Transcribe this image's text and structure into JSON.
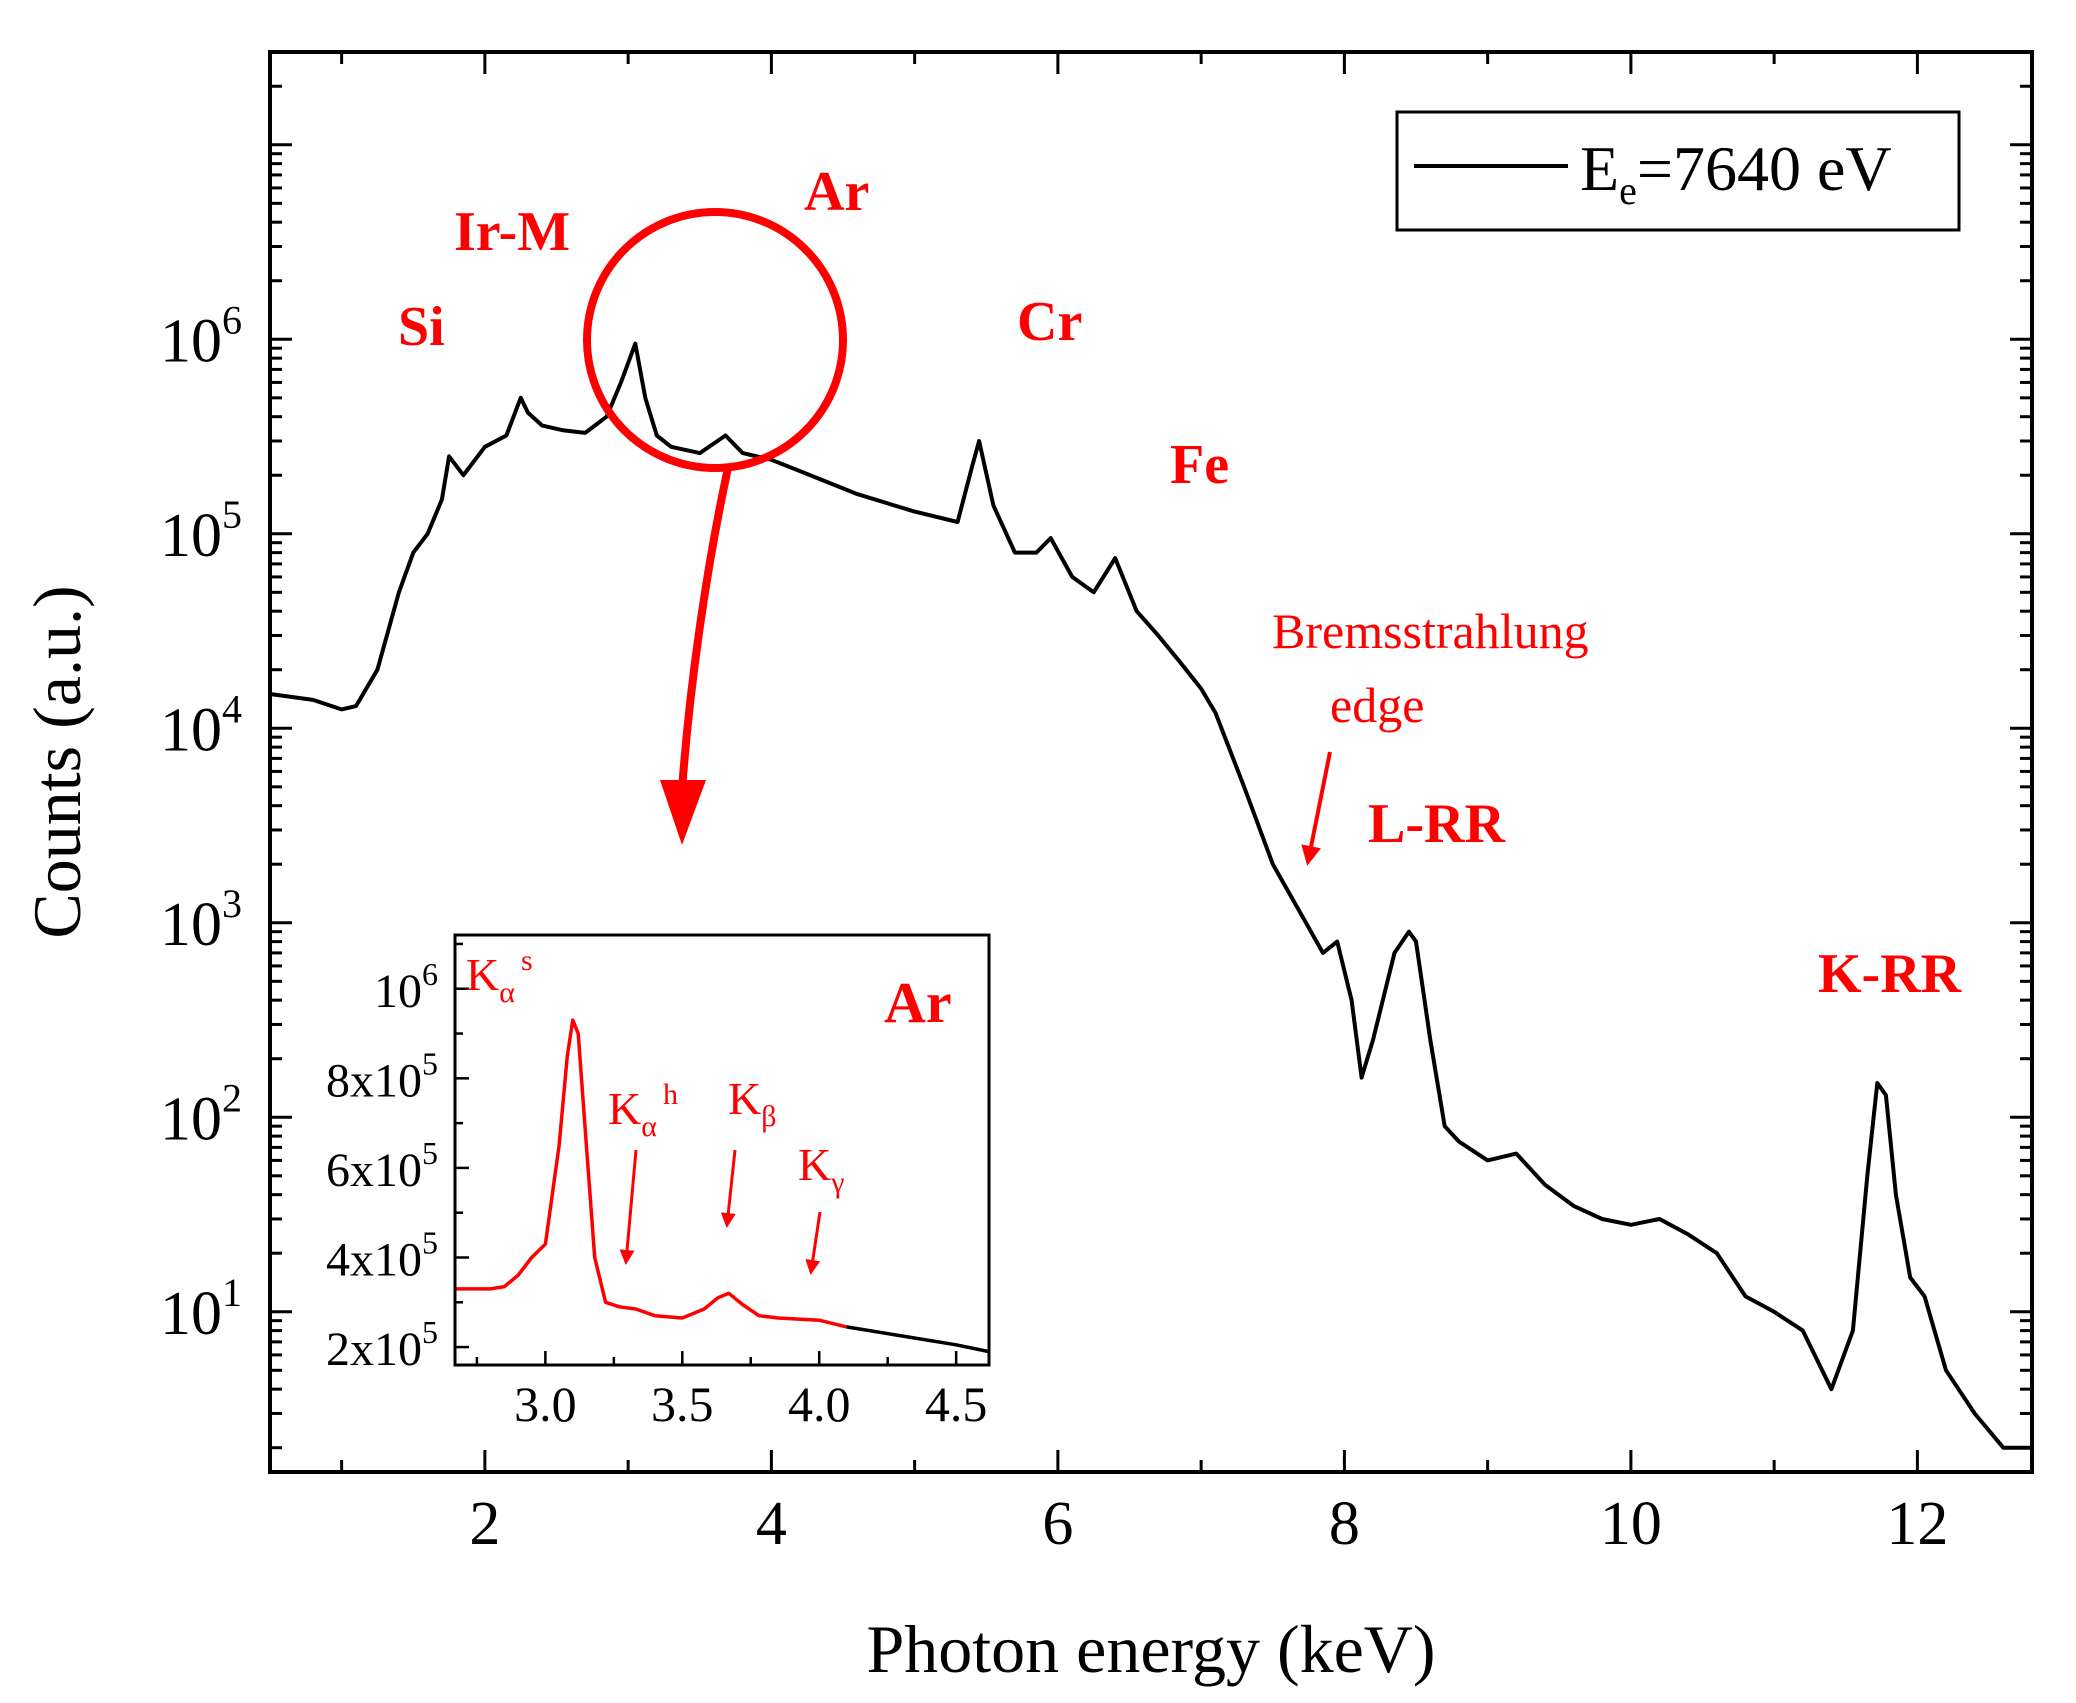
{
  "chart_data": [
    {
      "type": "line",
      "xlabel": "Photon energy (keV)",
      "ylabel": "Counts (a.u.)",
      "xlim": [
        0.5,
        12.8
      ],
      "ylim": [
        1.5,
        30000000
      ],
      "yscale": "log",
      "grid": false,
      "legend": {
        "position": "top-right",
        "entries": [
          {
            "prefix": "E",
            "subscript": "e",
            "suffix": "=7640 eV"
          }
        ]
      },
      "x_ticks": [
        {
          "value": 2,
          "label": "2"
        },
        {
          "value": 4,
          "label": "4"
        },
        {
          "value": 6,
          "label": "6"
        },
        {
          "value": 8,
          "label": "8"
        },
        {
          "value": 10,
          "label": "10"
        },
        {
          "value": 12,
          "label": "12"
        }
      ],
      "y_ticks": [
        {
          "value": 10,
          "base": "10",
          "exp": "1"
        },
        {
          "value": 100,
          "base": "10",
          "exp": "2"
        },
        {
          "value": 1000,
          "base": "10",
          "exp": "3"
        },
        {
          "value": 10000,
          "base": "10",
          "exp": "4"
        },
        {
          "value": 100000,
          "base": "10",
          "exp": "5"
        },
        {
          "value": 1000000,
          "base": "10",
          "exp": "6"
        }
      ],
      "series": [
        {
          "color": "#000000",
          "x": [
            0.5,
            0.8,
            1.0,
            1.1,
            1.25,
            1.4,
            1.5,
            1.6,
            1.7,
            1.75,
            1.85,
            2.0,
            2.15,
            2.25,
            2.3,
            2.4,
            2.55,
            2.7,
            2.85,
            2.95,
            3.05,
            3.12,
            3.2,
            3.3,
            3.5,
            3.68,
            3.8,
            4.0,
            4.2,
            4.6,
            5.0,
            5.3,
            5.4,
            5.45,
            5.55,
            5.7,
            5.85,
            5.95,
            6.1,
            6.25,
            6.4,
            6.55,
            6.7,
            6.85,
            7.0,
            7.1,
            7.3,
            7.5,
            7.7,
            7.85,
            7.95,
            8.05,
            8.12,
            8.2,
            8.35,
            8.45,
            8.5,
            8.6,
            8.7,
            8.8,
            9.0,
            9.2,
            9.4,
            9.6,
            9.8,
            10.0,
            10.2,
            10.4,
            10.6,
            10.8,
            11.0,
            11.2,
            11.4,
            11.55,
            11.65,
            11.72,
            11.78,
            11.85,
            11.95,
            12.05,
            12.2,
            12.4,
            12.6,
            12.8
          ],
          "y": [
            15000,
            14000,
            12500,
            13000,
            20000,
            50000,
            80000,
            100000,
            150000,
            250000,
            200000,
            280000,
            320000,
            500000,
            420000,
            360000,
            340000,
            330000,
            400000,
            600000,
            950000,
            500000,
            320000,
            280000,
            260000,
            320000,
            260000,
            240000,
            210000,
            160000,
            130000,
            115000,
            220000,
            300000,
            140000,
            80000,
            80000,
            95000,
            60000,
            50000,
            75000,
            40000,
            30000,
            22000,
            16000,
            12000,
            5000,
            2000,
            1100,
            700,
            800,
            400,
            160,
            250,
            700,
            900,
            800,
            250,
            90,
            75,
            60,
            65,
            45,
            35,
            30,
            28,
            30,
            25,
            20,
            12,
            10,
            8,
            4,
            8,
            50,
            150,
            130,
            40,
            15,
            12,
            5,
            3,
            2,
            2
          ]
        }
      ],
      "annotations": {
        "si": "Si",
        "irm": "Ir-M",
        "ar": "Ar",
        "cr": "Cr",
        "fe": "Fe",
        "brems_line1": "Bremsstrahlung",
        "brems_line2": "edge",
        "lrr": "L-RR",
        "krr": "K-RR"
      }
    },
    {
      "type": "line",
      "xlim": [
        2.67,
        4.62
      ],
      "ylim": [
        160000,
        1120000
      ],
      "x_ticks": [
        {
          "value": 3.0,
          "label": "3.0"
        },
        {
          "value": 3.5,
          "label": "3.5"
        },
        {
          "value": 4.0,
          "label": "4.0"
        },
        {
          "value": 4.5,
          "label": "4.5"
        }
      ],
      "y_ticks": [
        {
          "value": 200000,
          "base": "2x10",
          "exp": "5"
        },
        {
          "value": 400000,
          "base": "4x10",
          "exp": "5"
        },
        {
          "value": 600000,
          "base": "6x10",
          "exp": "5"
        },
        {
          "value": 800000,
          "base": "8x10",
          "exp": "5"
        },
        {
          "value": 1000000,
          "base": "10",
          "exp": "6"
        }
      ],
      "series": [
        {
          "color": "#ff0000",
          "x": [
            2.67,
            2.8,
            2.85,
            2.9,
            2.95,
            3.0,
            3.05,
            3.08,
            3.1,
            3.12,
            3.15,
            3.18,
            3.22,
            3.27,
            3.33,
            3.4,
            3.5,
            3.58,
            3.63,
            3.67,
            3.72,
            3.78,
            3.85,
            4.0,
            4.1
          ],
          "y": [
            330000,
            330000,
            335000,
            360000,
            400000,
            430000,
            650000,
            850000,
            930000,
            900000,
            650000,
            400000,
            300000,
            290000,
            285000,
            270000,
            265000,
            285000,
            310000,
            320000,
            295000,
            270000,
            265000,
            260000,
            245000
          ]
        },
        {
          "color": "#000000",
          "x": [
            4.1,
            4.3,
            4.5,
            4.62
          ],
          "y": [
            245000,
            225000,
            205000,
            190000
          ]
        }
      ],
      "annotations": {
        "ar": "Ar",
        "ka_s_main": "K",
        "ka_s_sub": "α",
        "ka_s_sup": "s",
        "ka_h_main": "K",
        "ka_h_sub": "α",
        "ka_h_sup": "h",
        "kb_main": "K",
        "kb_sub": "β",
        "kg_main": "K",
        "kg_sub": "γ"
      }
    }
  ]
}
